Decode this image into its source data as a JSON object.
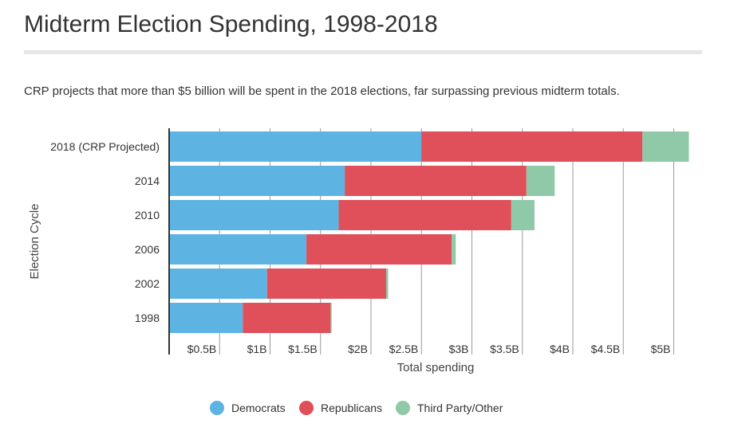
{
  "header": {
    "title": "Midterm Election Spending, 1998-2018",
    "subtitle": "CRP projects that more than $5 billion will be spent in the 2018 elections, far surpassing previous midterm totals."
  },
  "chart_data": {
    "type": "bar",
    "orientation": "horizontal",
    "stacked": true,
    "categories": [
      "2018 (CRP Projected)",
      "2014",
      "2010",
      "2006",
      "2002",
      "1998"
    ],
    "series": [
      {
        "name": "Democrats",
        "color": "#5db4e3",
        "values": [
          2.5,
          1.74,
          1.68,
          1.36,
          0.97,
          0.73
        ]
      },
      {
        "name": "Republicans",
        "color": "#e0505a",
        "values": [
          2.19,
          1.8,
          1.71,
          1.44,
          1.18,
          0.87
        ]
      },
      {
        "name": "Third Party/Other",
        "color": "#8fc9a8",
        "values": [
          0.46,
          0.28,
          0.23,
          0.04,
          0.02,
          0.01
        ]
      }
    ],
    "xlabel": "Total spending",
    "ylabel": "Election Cycle",
    "xlim": [
      0,
      5.2
    ],
    "xticks": [
      {
        "value": 0.5,
        "label": "$0.5B"
      },
      {
        "value": 1.0,
        "label": "$1B"
      },
      {
        "value": 1.5,
        "label": "$1.5B"
      },
      {
        "value": 2.0,
        "label": "$2B"
      },
      {
        "value": 2.5,
        "label": "$2.5B"
      },
      {
        "value": 3.0,
        "label": "$3B"
      },
      {
        "value": 3.5,
        "label": "$3.5B"
      },
      {
        "value": 4.0,
        "label": "$4B"
      },
      {
        "value": 4.5,
        "label": "$4.5B"
      },
      {
        "value": 5.0,
        "label": "$5B"
      }
    ],
    "grid": true,
    "legend_position": "bottom"
  }
}
